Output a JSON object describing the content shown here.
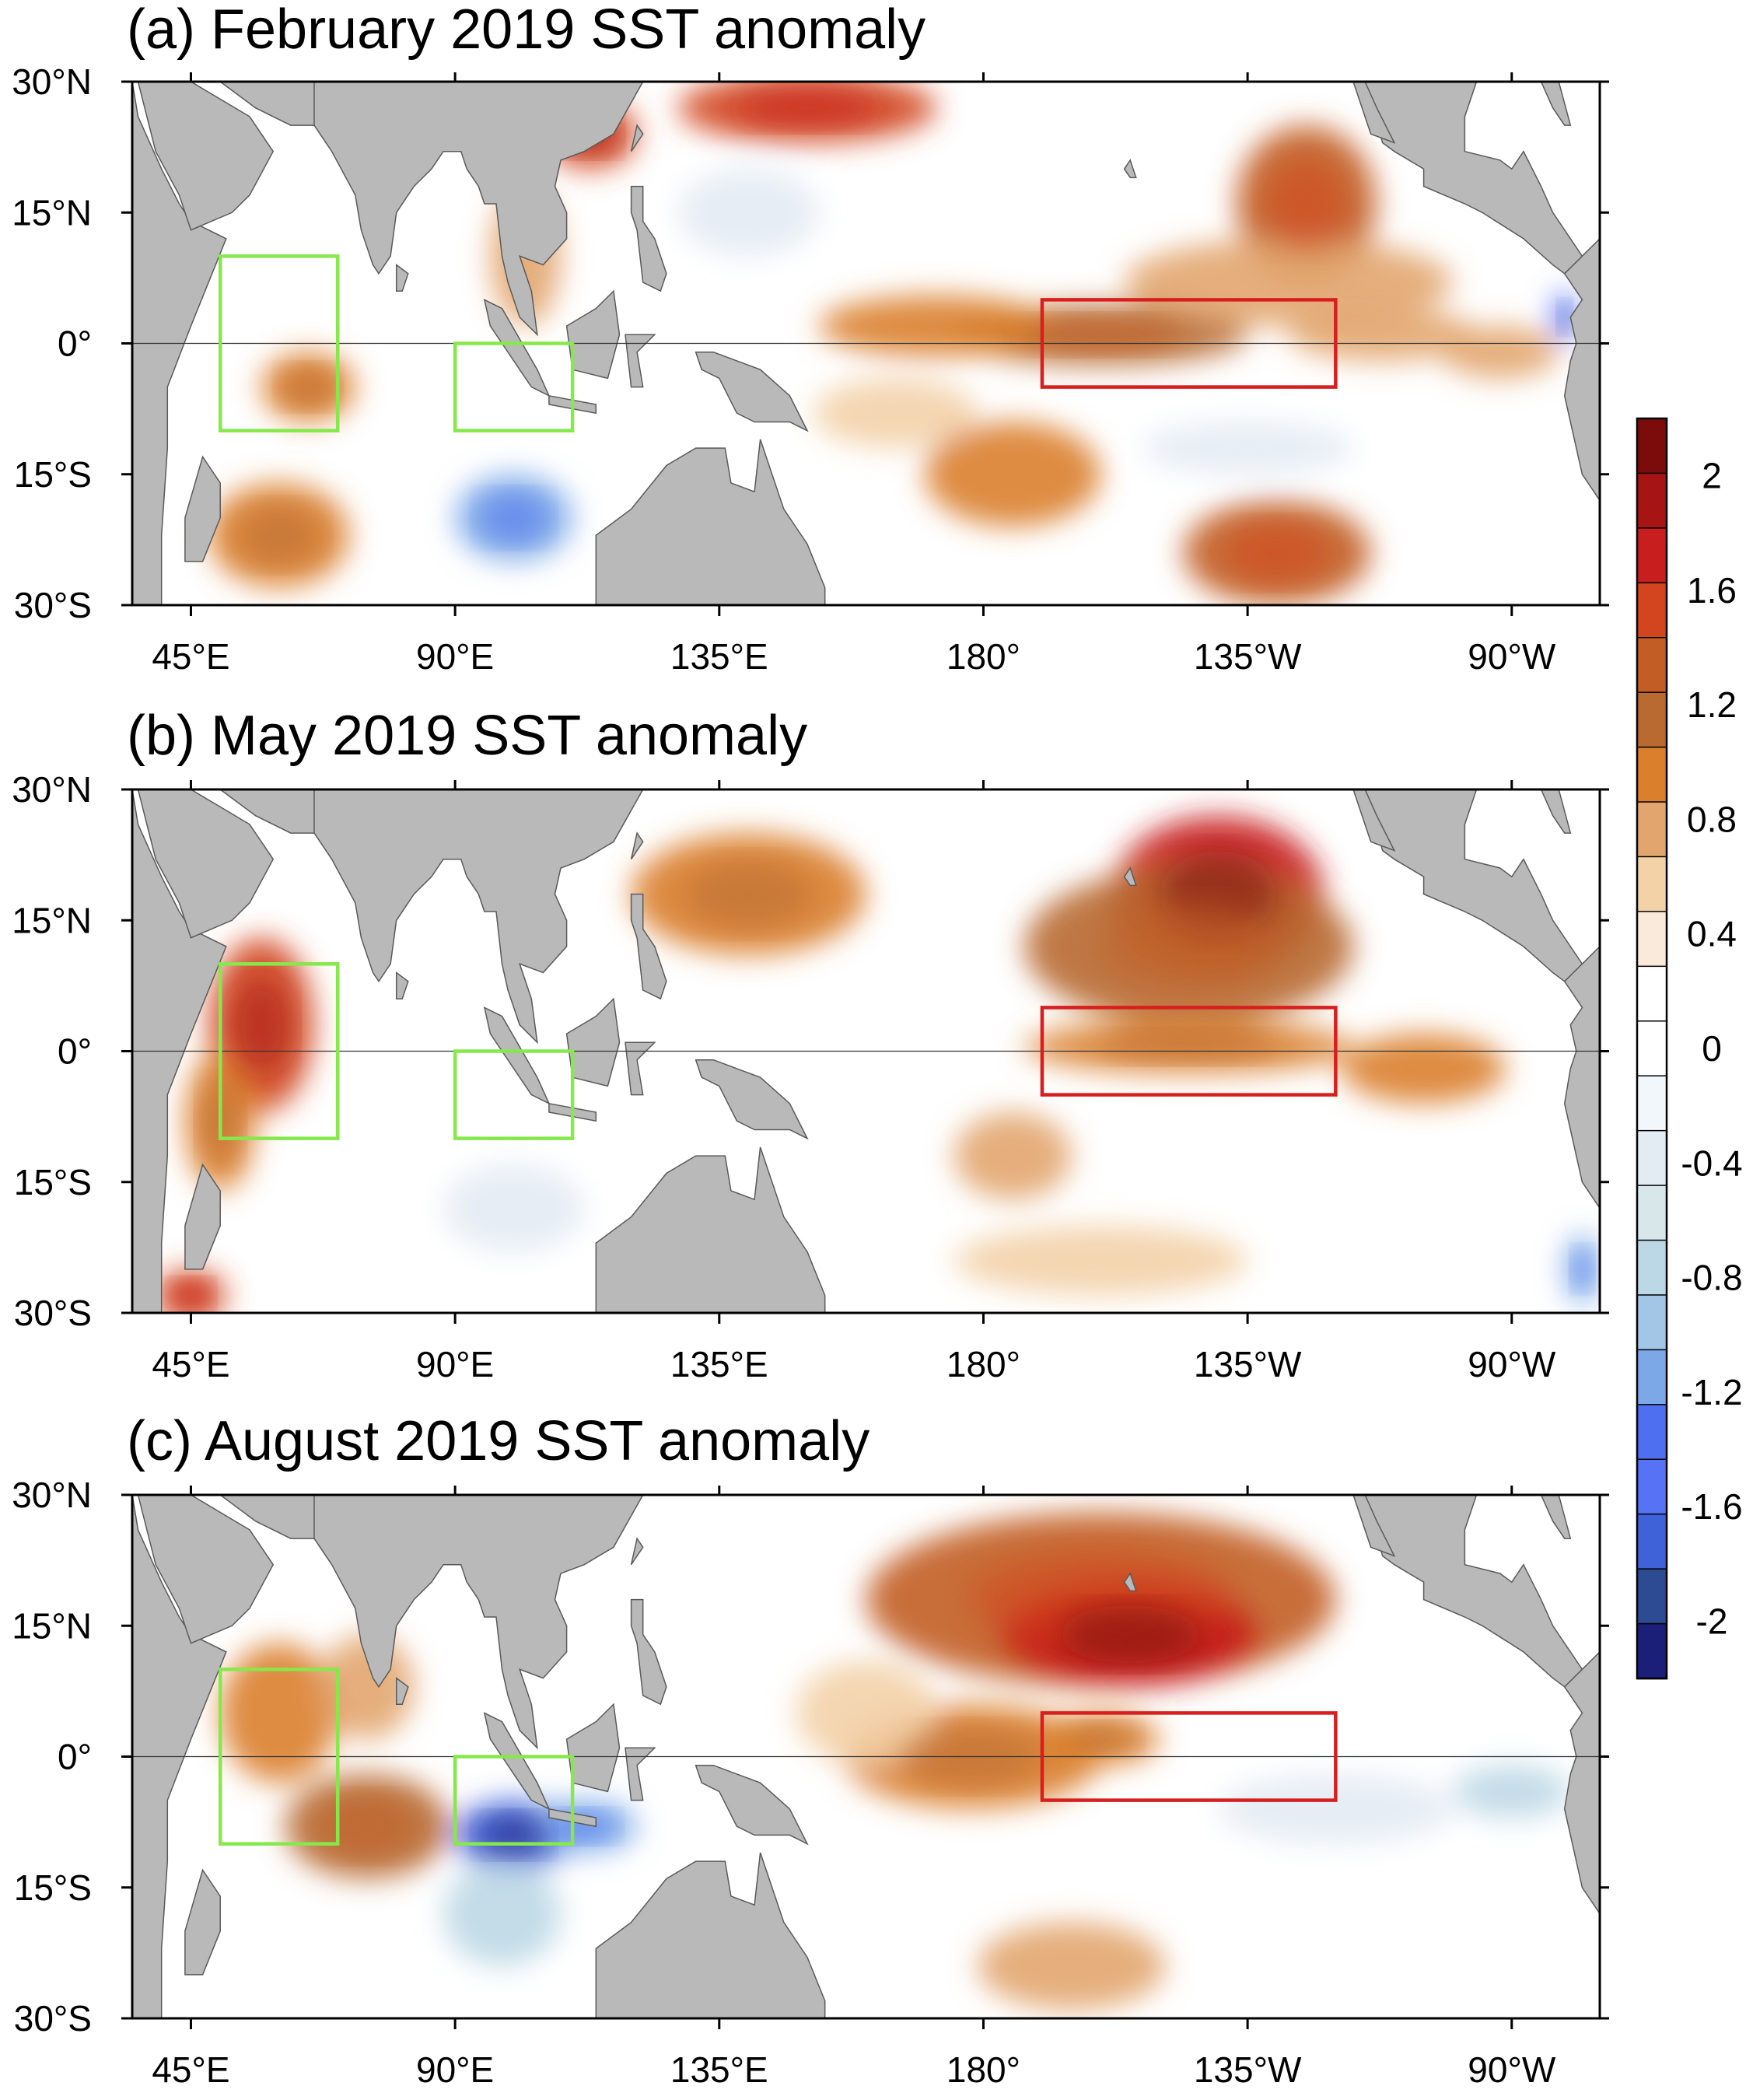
{
  "colors": {
    "land": "#b9b9b9",
    "ocean_neutral": "#ffffff",
    "iod_box": "#86e84a",
    "nino_box": "#d81e1e",
    "frame": "#000000"
  },
  "chart_data": {
    "type": "heatmap",
    "domain": {
      "lon_range": [
        35,
        285
      ],
      "lat_range": [
        -30,
        30
      ],
      "lon_unit": "degrees east",
      "lat_unit": "degrees north"
    },
    "x_ticks": [
      {
        "lon": 45,
        "label": "45°E"
      },
      {
        "lon": 90,
        "label": "90°E"
      },
      {
        "lon": 135,
        "label": "135°E"
      },
      {
        "lon": 180,
        "label": "180°"
      },
      {
        "lon": 225,
        "label": "135°W"
      },
      {
        "lon": 270,
        "label": "90°W"
      }
    ],
    "y_ticks": [
      {
        "lat": 30,
        "label": "30°N"
      },
      {
        "lat": 15,
        "label": "15°N"
      },
      {
        "lat": 0,
        "label": "0°"
      },
      {
        "lat": -15,
        "label": "15°S"
      },
      {
        "lat": -30,
        "label": "30°S"
      }
    ],
    "colorbar": {
      "labels": [
        "2",
        "1.6",
        "1.2",
        "0.8",
        "0.4",
        "0",
        "-0.4",
        "-0.8",
        "-1.2",
        "-1.6",
        "-2"
      ],
      "label_values": [
        2,
        1.6,
        1.2,
        0.8,
        0.4,
        0,
        -0.4,
        -0.8,
        -1.2,
        -1.6,
        -2
      ],
      "bins_top_to_bottom": [
        {
          "color": "#7c0c0c"
        },
        {
          "color": "#a71414"
        },
        {
          "color": "#c81e1e"
        },
        {
          "color": "#d2451f"
        },
        {
          "color": "#c25e25"
        },
        {
          "color": "#b86a30"
        },
        {
          "color": "#da7f2c"
        },
        {
          "color": "#e2a56e"
        },
        {
          "color": "#f3d2a8"
        },
        {
          "color": "#faeadb"
        },
        {
          "color": "#ffffff"
        },
        {
          "color": "#ffffff"
        },
        {
          "color": "#f2f7fb"
        },
        {
          "color": "#e3ebf3"
        },
        {
          "color": "#d7e7ea"
        },
        {
          "color": "#bcd8e6"
        },
        {
          "color": "#a3c6e6"
        },
        {
          "color": "#7ca8e8"
        },
        {
          "color": "#4d6ff0"
        },
        {
          "color": "#5672f5"
        },
        {
          "color": "#3f62d8"
        },
        {
          "color": "#2c4b93"
        },
        {
          "color": "#1c1f78"
        }
      ]
    },
    "index_boxes": [
      {
        "region": "IOD west",
        "color": "#86e84a",
        "lon": [
          50,
          70
        ],
        "lat": [
          -10,
          10
        ]
      },
      {
        "region": "IOD east",
        "color": "#86e84a",
        "lon": [
          90,
          110
        ],
        "lat": [
          -10,
          0
        ]
      },
      {
        "region": "Nino 3.4",
        "color": "#d81e1e",
        "lon": [
          190,
          240
        ],
        "lat": [
          -5,
          5
        ]
      }
    ],
    "panels": [
      {
        "id": "a",
        "title": "(a) February 2019 SST anomaly",
        "anomaly_blobs": [
          {
            "lon": 200,
            "lat": 1,
            "rlon": 25,
            "rlat": 3.5,
            "value": 1.1
          },
          {
            "lon": 172,
            "lat": 2,
            "rlon": 20,
            "rlat": 3.5,
            "value": 0.9
          },
          {
            "lon": 248,
            "lat": 1,
            "rlon": 16,
            "rlat": 3,
            "value": 0.8
          },
          {
            "lon": 268,
            "lat": -1,
            "rlon": 10,
            "rlat": 3,
            "value": 0.7
          },
          {
            "lon": 235,
            "lat": 16,
            "rlon": 12,
            "rlat": 9,
            "value": 1.3
          },
          {
            "lon": 232,
            "lat": 7,
            "rlon": 28,
            "rlat": 5,
            "value": 0.7
          },
          {
            "lon": 150,
            "lat": 27,
            "rlon": 22,
            "rlat": 4,
            "value": 1.5
          },
          {
            "lon": 113,
            "lat": 24,
            "rlon": 8,
            "rlat": 4,
            "value": 1.6
          },
          {
            "lon": 230,
            "lat": -24,
            "rlon": 16,
            "rlat": 6,
            "value": 1.3
          },
          {
            "lon": 185,
            "lat": -15,
            "rlon": 15,
            "rlat": 6,
            "value": 0.9
          },
          {
            "lon": 165,
            "lat": -8,
            "rlon": 14,
            "rlat": 4,
            "value": 0.6
          },
          {
            "lon": 65,
            "lat": -5,
            "rlon": 8,
            "rlat": 4,
            "value": 1.0
          },
          {
            "lon": 60,
            "lat": -22,
            "rlon": 12,
            "rlat": 6,
            "value": 1.0
          },
          {
            "lon": 102,
            "lat": 10,
            "rlon": 6,
            "rlat": 8,
            "value": 0.7
          },
          {
            "lon": 100,
            "lat": -20,
            "rlon": 10,
            "rlat": 5,
            "value": -1.2
          },
          {
            "lon": 225,
            "lat": -12,
            "rlon": 18,
            "rlat": 3,
            "value": -0.4
          },
          {
            "lon": 140,
            "lat": 15,
            "rlon": 12,
            "rlat": 5,
            "value": -0.4
          },
          {
            "lon": 279,
            "lat": 3,
            "rlon": 2,
            "rlat": 3,
            "value": -1.6
          }
        ]
      },
      {
        "id": "b",
        "title": "(b)  May 2019 SST anomaly",
        "anomaly_blobs": [
          {
            "lon": 220,
            "lat": 18,
            "rlon": 18,
            "rlat": 9,
            "value": 1.8
          },
          {
            "lon": 215,
            "lat": 12,
            "rlon": 28,
            "rlat": 9,
            "value": 1.1
          },
          {
            "lon": 140,
            "lat": 18,
            "rlon": 20,
            "rlat": 7,
            "value": 1.0
          },
          {
            "lon": 215,
            "lat": 0.5,
            "rlon": 28,
            "rlat": 3,
            "value": 1.0
          },
          {
            "lon": 255,
            "lat": -2,
            "rlon": 14,
            "rlat": 4,
            "value": 0.9
          },
          {
            "lon": 57,
            "lat": 3,
            "rlon": 9,
            "rlat": 10,
            "value": 1.6
          },
          {
            "lon": 50,
            "lat": -8,
            "rlon": 6,
            "rlat": 8,
            "value": 1.0
          },
          {
            "lon": 185,
            "lat": -12,
            "rlon": 10,
            "rlat": 5,
            "value": 0.8
          },
          {
            "lon": 45,
            "lat": -28,
            "rlon": 6,
            "rlat": 3,
            "value": 1.5
          },
          {
            "lon": 200,
            "lat": -24,
            "rlon": 25,
            "rlat": 4,
            "value": 0.6
          },
          {
            "lon": 100,
            "lat": -18,
            "rlon": 12,
            "rlat": 5,
            "value": -0.4
          },
          {
            "lon": 282,
            "lat": -25,
            "rlon": 3,
            "rlat": 4,
            "value": -1.2
          }
        ]
      },
      {
        "id": "c",
        "title": "(c)  August 2019 SST anomaly",
        "anomaly_blobs": [
          {
            "lon": 200,
            "lat": 18,
            "rlon": 40,
            "rlat": 10,
            "value": 1.4
          },
          {
            "lon": 205,
            "lat": 14,
            "rlon": 22,
            "rlat": 6,
            "value": 1.8
          },
          {
            "lon": 178,
            "lat": 0,
            "rlon": 22,
            "rlat": 6,
            "value": 1.0
          },
          {
            "lon": 200,
            "lat": 2,
            "rlon": 10,
            "rlat": 3,
            "value": 1.0
          },
          {
            "lon": 75,
            "lat": -8,
            "rlon": 14,
            "rlat": 6,
            "value": 1.1
          },
          {
            "lon": 60,
            "lat": 5,
            "rlon": 10,
            "rlat": 8,
            "value": 0.9
          },
          {
            "lon": 75,
            "lat": 8,
            "rlon": 8,
            "rlat": 6,
            "value": 0.8
          },
          {
            "lon": 100,
            "lat": -9,
            "rlon": 10,
            "rlat": 4,
            "value": -1.8
          },
          {
            "lon": 112,
            "lat": -8,
            "rlon": 9,
            "rlat": 3,
            "value": -1.2
          },
          {
            "lon": 98,
            "lat": -18,
            "rlon": 10,
            "rlat": 6,
            "value": -0.8
          },
          {
            "lon": 240,
            "lat": -6,
            "rlon": 20,
            "rlat": 4,
            "value": -0.4
          },
          {
            "lon": 270,
            "lat": -4,
            "rlon": 10,
            "rlat": 3,
            "value": -0.8
          },
          {
            "lon": 195,
            "lat": -24,
            "rlon": 16,
            "rlat": 5,
            "value": 0.7
          },
          {
            "lon": 160,
            "lat": 5,
            "rlon": 12,
            "rlat": 6,
            "value": 0.5
          }
        ]
      }
    ]
  },
  "land_polygons": [
    {
      "name": "Africa",
      "pts": [
        [
          35,
          30
        ],
        [
          35,
          -30
        ],
        [
          40,
          -30
        ],
        [
          40,
          -22
        ],
        [
          41,
          -12
        ],
        [
          41,
          -5
        ],
        [
          45,
          2
        ],
        [
          51,
          12
        ],
        [
          45,
          14
        ],
        [
          43,
          16
        ],
        [
          40,
          20
        ],
        [
          36,
          26
        ],
        [
          35,
          30
        ]
      ]
    },
    {
      "name": "Arabia",
      "pts": [
        [
          36,
          30
        ],
        [
          45,
          30
        ],
        [
          55,
          26
        ],
        [
          57,
          24
        ],
        [
          59,
          22
        ],
        [
          55,
          17
        ],
        [
          52,
          15
        ],
        [
          45,
          13
        ],
        [
          43,
          17
        ],
        [
          39,
          22
        ],
        [
          36,
          30
        ]
      ]
    },
    {
      "name": "Iran-Pakistan",
      "pts": [
        [
          50,
          30
        ],
        [
          56,
          27
        ],
        [
          62,
          25
        ],
        [
          66,
          25
        ],
        [
          68,
          24
        ],
        [
          70,
          30
        ]
      ]
    },
    {
      "name": "India",
      "pts": [
        [
          66,
          30
        ],
        [
          66,
          25
        ],
        [
          69,
          22
        ],
        [
          73,
          17
        ],
        [
          74,
          13
        ],
        [
          76,
          9
        ],
        [
          77,
          8
        ],
        [
          79,
          10
        ],
        [
          80,
          15
        ],
        [
          83,
          18
        ],
        [
          86,
          20
        ],
        [
          88,
          22
        ],
        [
          91,
          22
        ],
        [
          92,
          20
        ],
        [
          94,
          18
        ],
        [
          95,
          16
        ],
        [
          97,
          16
        ],
        [
          98,
          10
        ],
        [
          99,
          7
        ],
        [
          101,
          3
        ],
        [
          104,
          1
        ],
        [
          103,
          6
        ],
        [
          101,
          10
        ],
        [
          105,
          9
        ],
        [
          109,
          12
        ],
        [
          109,
          15
        ],
        [
          107,
          18
        ],
        [
          108,
          21
        ],
        [
          112,
          22
        ],
        [
          117,
          24
        ],
        [
          122,
          30
        ]
      ]
    },
    {
      "name": "Madagascar",
      "pts": [
        [
          44,
          -25
        ],
        [
          44,
          -20
        ],
        [
          47,
          -13
        ],
        [
          50,
          -16
        ],
        [
          50,
          -20
        ],
        [
          47,
          -25
        ]
      ]
    },
    {
      "name": "Sri Lanka",
      "pts": [
        [
          80,
          6
        ],
        [
          80,
          9
        ],
        [
          82,
          8
        ],
        [
          81,
          6
        ]
      ]
    },
    {
      "name": "Sumatra",
      "pts": [
        [
          95,
          5
        ],
        [
          98,
          4
        ],
        [
          104,
          -3
        ],
        [
          106,
          -6
        ],
        [
          103,
          -5
        ],
        [
          100,
          -2
        ],
        [
          96,
          2
        ]
      ]
    },
    {
      "name": "Borneo",
      "pts": [
        [
          109,
          2
        ],
        [
          110,
          -3
        ],
        [
          116,
          -4
        ],
        [
          118,
          1
        ],
        [
          117,
          6
        ],
        [
          114,
          4
        ]
      ]
    },
    {
      "name": "Java",
      "pts": [
        [
          106,
          -6
        ],
        [
          114,
          -7
        ],
        [
          114,
          -8
        ],
        [
          106,
          -7
        ]
      ]
    },
    {
      "name": "Sulawesi",
      "pts": [
        [
          119,
          1
        ],
        [
          120,
          -5
        ],
        [
          122,
          -5
        ],
        [
          121,
          -1
        ],
        [
          124,
          1
        ]
      ]
    },
    {
      "name": "Philippines",
      "pts": [
        [
          120,
          18
        ],
        [
          122,
          18
        ],
        [
          122,
          14
        ],
        [
          124,
          12
        ],
        [
          126,
          8
        ],
        [
          125,
          6
        ],
        [
          122,
          7
        ],
        [
          121,
          13
        ],
        [
          120,
          15
        ]
      ]
    },
    {
      "name": "Taiwan",
      "pts": [
        [
          120,
          22
        ],
        [
          121,
          25
        ],
        [
          122,
          24
        ]
      ]
    },
    {
      "name": "New Guinea",
      "pts": [
        [
          131,
          -1
        ],
        [
          134,
          -1
        ],
        [
          138,
          -2
        ],
        [
          142,
          -3
        ],
        [
          147,
          -6
        ],
        [
          150,
          -10
        ],
        [
          147,
          -9
        ],
        [
          141,
          -9
        ],
        [
          138,
          -8
        ],
        [
          135,
          -4
        ],
        [
          132,
          -3
        ]
      ]
    },
    {
      "name": "Australia",
      "pts": [
        [
          114,
          -30
        ],
        [
          114,
          -22
        ],
        [
          120,
          -19
        ],
        [
          126,
          -14
        ],
        [
          131,
          -12
        ],
        [
          136,
          -12
        ],
        [
          137,
          -16
        ],
        [
          141,
          -17
        ],
        [
          142,
          -11
        ],
        [
          146,
          -19
        ],
        [
          150,
          -23
        ],
        [
          153,
          -28
        ],
        [
          153,
          -30
        ]
      ]
    },
    {
      "name": "North America",
      "pts": [
        [
          245,
          30
        ],
        [
          248,
          23
        ],
        [
          250,
          22
        ],
        [
          255,
          20
        ],
        [
          255,
          18
        ],
        [
          262,
          16
        ],
        [
          265,
          15
        ],
        [
          272,
          12
        ],
        [
          277,
          9
        ],
        [
          279,
          8
        ],
        [
          282,
          8
        ],
        [
          282,
          10
        ],
        [
          280,
          12
        ],
        [
          277,
          15
        ],
        [
          275,
          18
        ],
        [
          272,
          22
        ],
        [
          270,
          20
        ],
        [
          268,
          21
        ],
        [
          262,
          22
        ],
        [
          262,
          26
        ],
        [
          264,
          30
        ]
      ]
    },
    {
      "name": "Baja California",
      "pts": [
        [
          243,
          30
        ],
        [
          246,
          24
        ],
        [
          250,
          23
        ],
        [
          247,
          27
        ],
        [
          245,
          30
        ]
      ]
    },
    {
      "name": "Florida-Gulf",
      "pts": [
        [
          270,
          30
        ],
        [
          278,
          30
        ],
        [
          280,
          25
        ],
        [
          279,
          25
        ],
        [
          277,
          27
        ],
        [
          275,
          30
        ]
      ]
    },
    {
      "name": "South America",
      "pts": [
        [
          279,
          8
        ],
        [
          285,
          12
        ],
        [
          285,
          -30
        ],
        [
          289,
          -30
        ],
        [
          285,
          -18
        ],
        [
          282,
          -15
        ],
        [
          279,
          -6
        ],
        [
          280,
          -2
        ],
        [
          281,
          0
        ],
        [
          280,
          3
        ],
        [
          282,
          5
        ]
      ]
    },
    {
      "name": "Hawaii",
      "pts": [
        [
          204,
          20
        ],
        [
          205,
          21
        ],
        [
          206,
          19
        ],
        [
          205,
          19
        ]
      ]
    }
  ]
}
